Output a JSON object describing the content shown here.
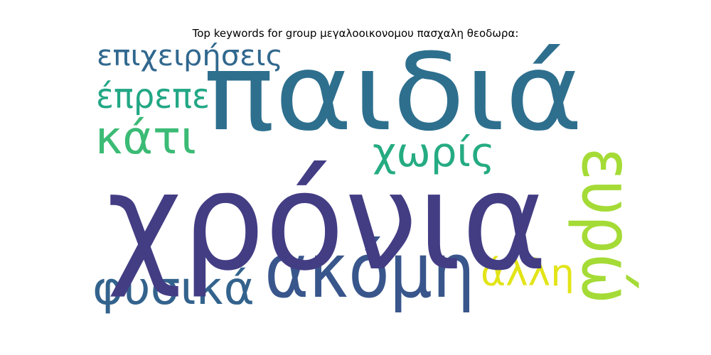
{
  "chart_data": {
    "type": "wordcloud",
    "title": "Top keywords for group μεγαλοοικονομου πασχαλη θεοδωρα:",
    "words": [
      {
        "text": "χρόνια",
        "color": "#433d84"
      },
      {
        "text": "παιδιά",
        "color": "#2e6f8e"
      },
      {
        "text": "ακόμη",
        "color": "#39568c"
      },
      {
        "text": "ευρώ",
        "color": "#a5db36"
      },
      {
        "text": "φυσικά",
        "color": "#33638d"
      },
      {
        "text": "χωρίς",
        "color": "#25ab82"
      },
      {
        "text": "κάτι",
        "color": "#3bbb75"
      },
      {
        "text": "έπρεπε",
        "color": "#22a785"
      },
      {
        "text": "επιχειρήσεις",
        "color": "#31688e"
      },
      {
        "text": "άλλη",
        "color": "#e2e418"
      }
    ]
  }
}
